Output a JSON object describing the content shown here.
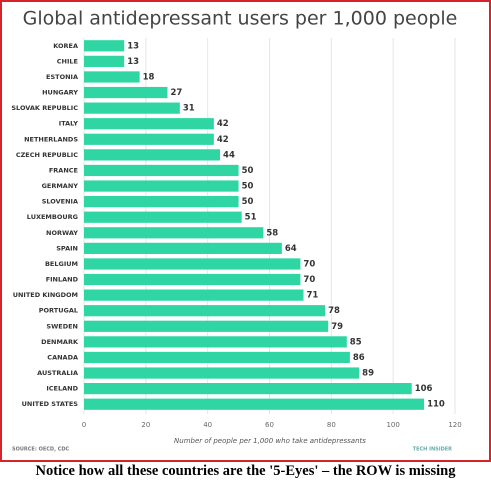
{
  "chart_data": {
    "type": "bar",
    "orientation": "horizontal",
    "title": "Global antidepressant users per 1,000 people",
    "categories": [
      "KOREA",
      "CHILE",
      "ESTONIA",
      "HUNGARY",
      "SLOVAK REPUBLIC",
      "ITALY",
      "NETHERLANDS",
      "CZECH REPUBLIC",
      "FRANCE",
      "GERMANY",
      "SLOVENIA",
      "LUXEMBOURG",
      "NORWAY",
      "SPAIN",
      "BELGIUM",
      "FINLAND",
      "UNITED KINGDOM",
      "PORTUGAL",
      "SWEDEN",
      "DENMARK",
      "CANADA",
      "AUSTRALIA",
      "ICELAND",
      "UNITED STATES"
    ],
    "values": [
      13,
      13,
      18,
      27,
      31,
      42,
      42,
      44,
      50,
      50,
      50,
      51,
      58,
      64,
      70,
      70,
      71,
      78,
      79,
      85,
      86,
      89,
      106,
      110
    ],
    "color": "#2fd6a4",
    "xlim": [
      0,
      120
    ],
    "xticks": [
      0,
      20,
      40,
      60,
      80,
      100,
      120
    ],
    "grid": true,
    "xlabel": "Number of people per 1,000 who take antidepressants",
    "source": "SOURCE: OECD, CDC",
    "brand": "TECH INSIDER"
  },
  "caption": "Notice how all these countries are the '5-Eyes' – the ROW is missing"
}
